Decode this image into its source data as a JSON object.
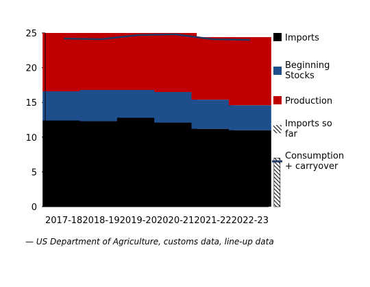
{
  "chart_data": {
    "type": "bar",
    "stacked": true,
    "categories": [
      "2017-18",
      "2018-19",
      "2019-20",
      "2020-21",
      "2021-22",
      "2022-23"
    ],
    "ylim": [
      0,
      25
    ],
    "yticks": [
      0,
      5,
      10,
      15,
      20,
      25
    ],
    "series": [
      {
        "name": "Imports",
        "kind": "bar",
        "color": "#000000",
        "values": [
          12.4,
          12.3,
          12.8,
          12.1,
          11.2,
          11.0
        ]
      },
      {
        "name": "Beginning Stocks",
        "kind": "bar",
        "color": "#1f4e8c",
        "values": [
          4.2,
          4.5,
          4.0,
          4.4,
          4.2,
          3.6
        ]
      },
      {
        "name": "Production",
        "kind": "bar",
        "color": "#c00000",
        "values": [
          8.4,
          8.2,
          8.2,
          8.5,
          9.0,
          9.8
        ]
      },
      {
        "name": "Imports so far",
        "kind": "hatched",
        "color": "#000000",
        "values": [
          null,
          null,
          null,
          null,
          null,
          7.0
        ]
      },
      {
        "name": "Consumption + carryover",
        "kind": "line",
        "color": "#1f3864",
        "values": [
          24.2,
          24.1,
          24.7,
          24.8,
          24.1,
          24.0
        ]
      }
    ],
    "legend": [
      {
        "label": "Imports",
        "swatch": "box",
        "color": "#000000"
      },
      {
        "label": "Beginning Stocks",
        "swatch": "box",
        "color": "#1f4e8c"
      },
      {
        "label": "Production",
        "swatch": "box",
        "color": "#c00000"
      },
      {
        "label": "Imports so far",
        "swatch": "hatch",
        "color": "#000000"
      },
      {
        "label": "Consumption + carryover",
        "swatch": "line",
        "color": "#1f3864"
      }
    ],
    "legend_position": "right",
    "grid": false
  },
  "source_note": "— US Department of Agriculture, customs data, line-up data"
}
